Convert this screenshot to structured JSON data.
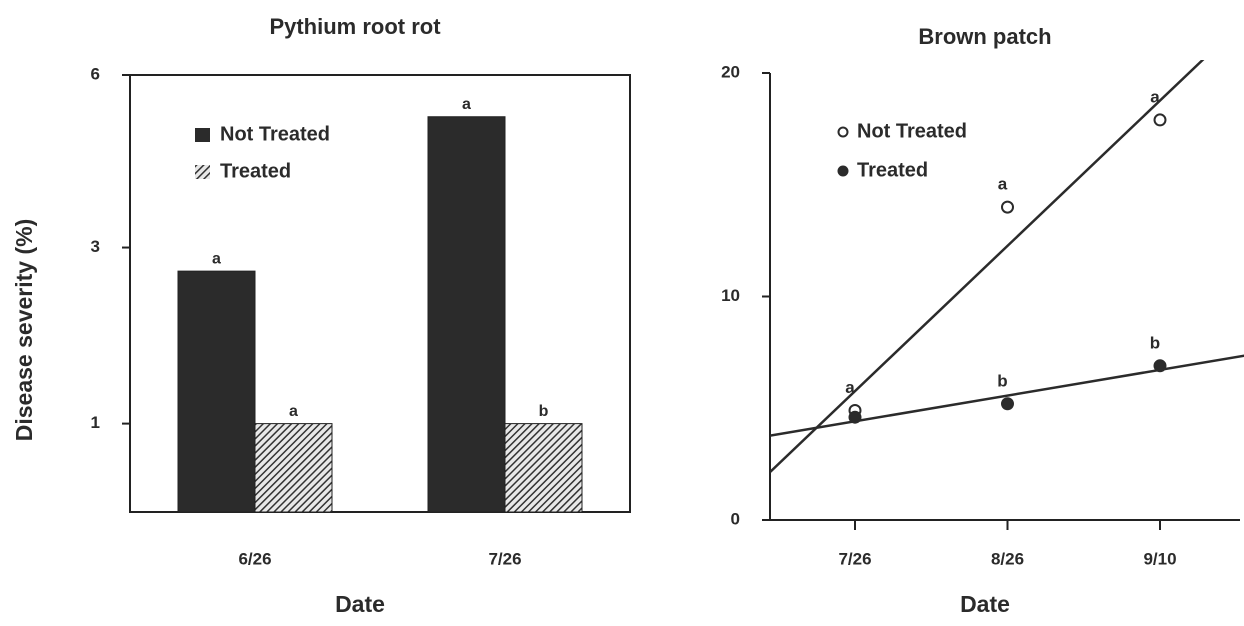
{
  "chart_data": [
    {
      "type": "bar",
      "title": "Pythium root rot",
      "y_label": "Disease severity (%)",
      "x_label": "Date",
      "categories": [
        "6/26",
        "7/26"
      ],
      "series": [
        {
          "name": "Not Treated",
          "color": "#2b2b2b",
          "values": [
            2.67,
            5.18
          ],
          "letters": [
            "a",
            "a"
          ]
        },
        {
          "name": "Treated",
          "color": "#3a3a3a",
          "pattern": "hatch",
          "values": [
            1,
            1
          ],
          "letters": [
            "a",
            "b"
          ]
        }
      ],
      "y_scale": "sqrt",
      "ylim": [
        0.4,
        6
      ],
      "yticks": [
        1,
        3,
        6
      ],
      "legend": "upper left"
    },
    {
      "type": "scatter",
      "title": "Brown patch",
      "x_label": "Date",
      "categories": [
        "7/26",
        "8/26",
        "9/10"
      ],
      "series": [
        {
          "name": "Not Treated",
          "color": "#2b2b2b",
          "marker": "open",
          "values": [
            4.9,
            14,
            17.9
          ],
          "letters": [
            "a",
            "a",
            "a"
          ]
        },
        {
          "name": "Treated",
          "color": "#2b2b2b",
          "marker": "filled",
          "values": [
            4.6,
            5.2,
            6.9
          ],
          "letters": [
            null,
            "b",
            "b"
          ]
        }
      ],
      "ylim": [
        0,
        20
      ],
      "yticks": [
        0,
        10,
        20
      ],
      "trendline": true,
      "legend": "upper left"
    }
  ]
}
